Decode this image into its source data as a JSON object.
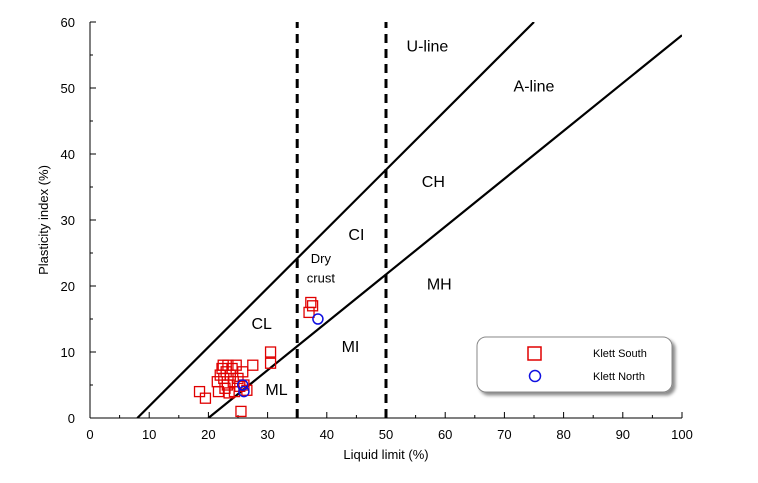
{
  "chart_data": {
    "type": "scatter",
    "title": "",
    "xlabel": "Liquid limit (%)",
    "ylabel": "Plasticity index (%)",
    "xlim": [
      0,
      100
    ],
    "ylim": [
      0,
      60
    ],
    "xticks": [
      0,
      10,
      20,
      30,
      40,
      50,
      60,
      70,
      80,
      90,
      100
    ],
    "yticks": [
      0,
      10,
      20,
      30,
      40,
      50,
      60
    ],
    "grid": false,
    "legend_position": "bottom-right",
    "reference_lines": [
      {
        "name": "U-line",
        "style": "solid",
        "points": [
          [
            8,
            0
          ],
          [
            75,
            60
          ]
        ]
      },
      {
        "name": "A-line",
        "style": "solid",
        "points": [
          [
            20,
            0
          ],
          [
            100,
            58
          ]
        ]
      },
      {
        "name": "",
        "style": "dashed",
        "points": [
          [
            35,
            0
          ],
          [
            35,
            60
          ]
        ]
      },
      {
        "name": "",
        "style": "dashed",
        "points": [
          [
            50,
            0
          ],
          [
            50,
            60
          ]
        ]
      }
    ],
    "zone_labels": [
      {
        "text": "U-line",
        "x": 57,
        "y": 55.5
      },
      {
        "text": "A-line",
        "x": 75,
        "y": 49.5
      },
      {
        "text": "CH",
        "x": 58,
        "y": 35
      },
      {
        "text": "CI",
        "x": 45,
        "y": 27
      },
      {
        "text": "MH",
        "x": 59,
        "y": 19.5
      },
      {
        "text": "CL",
        "x": 29,
        "y": 13.5
      },
      {
        "text": "MI",
        "x": 44,
        "y": 10
      },
      {
        "text": "ML",
        "x": 31.5,
        "y": 3.5
      }
    ],
    "annotation": {
      "lines": [
        "Dry",
        "crust"
      ],
      "x": 39,
      "y": [
        23.5,
        20.5
      ]
    },
    "series": [
      {
        "name": "Klett South",
        "marker": "square",
        "color": "#e00000",
        "points": [
          [
            18.5,
            4
          ],
          [
            19.5,
            3
          ],
          [
            21.5,
            5.5
          ],
          [
            21.7,
            4
          ],
          [
            22,
            6.5
          ],
          [
            22.3,
            7.5
          ],
          [
            22.5,
            8
          ],
          [
            22.6,
            6
          ],
          [
            22.8,
            4.5
          ],
          [
            23,
            7
          ],
          [
            23.2,
            5
          ],
          [
            23.3,
            8
          ],
          [
            23.5,
            3.8
          ],
          [
            23.7,
            6.5
          ],
          [
            24,
            7.5
          ],
          [
            24.2,
            5.5
          ],
          [
            24.4,
            4
          ],
          [
            24.7,
            8
          ],
          [
            25,
            6
          ],
          [
            25.3,
            4.8
          ],
          [
            25.5,
            1
          ],
          [
            25.8,
            7
          ],
          [
            26,
            5
          ],
          [
            26.5,
            4.2
          ],
          [
            27.5,
            8
          ],
          [
            30.5,
            10
          ],
          [
            30.5,
            8.3
          ],
          [
            37,
            16
          ],
          [
            37.3,
            17.5
          ],
          [
            37.6,
            17
          ]
        ]
      },
      {
        "name": "Klett North",
        "marker": "circle",
        "color": "#1010e0",
        "points": [
          [
            25.8,
            5
          ],
          [
            26,
            4
          ],
          [
            38.5,
            15
          ]
        ]
      }
    ]
  }
}
